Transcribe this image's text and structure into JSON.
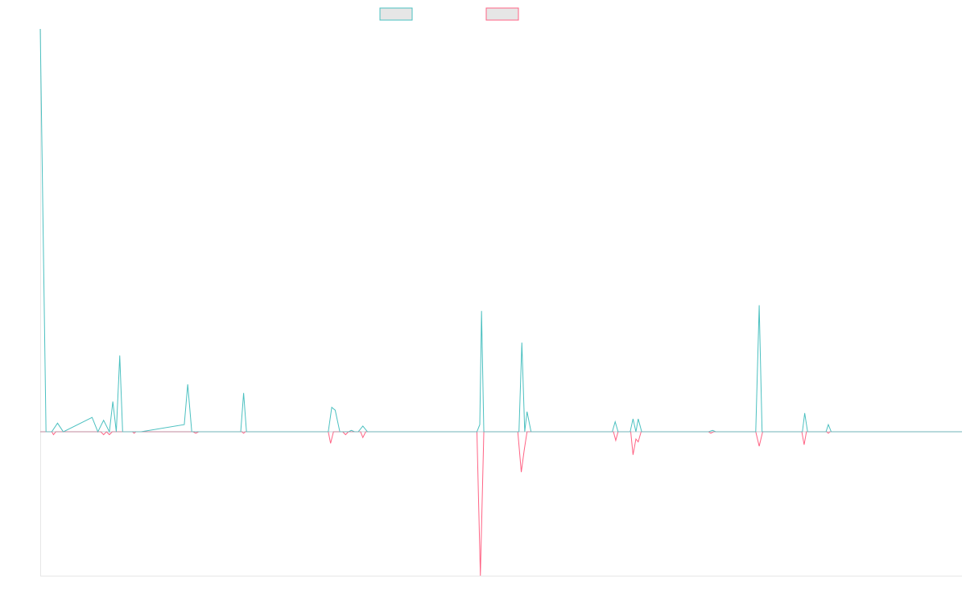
{
  "chart_data": {
    "type": "line",
    "title": "",
    "xlabel": "",
    "ylabel": "",
    "grid": false,
    "legend_position": "top-center",
    "colors": {
      "series_a": "#4bc0c0",
      "series_b": "#ff6384",
      "legend_fill": "#e6e6e6",
      "axis": "#e6e6e6"
    },
    "x_count": 160,
    "ylim": [
      -100,
      280
    ],
    "series": [
      {
        "color": "#4bc0c0",
        "points": [
          [
            0,
            280
          ],
          [
            1,
            0
          ],
          [
            2,
            0
          ],
          [
            3,
            6
          ],
          [
            4,
            0
          ],
          [
            9,
            10
          ],
          [
            10,
            0
          ],
          [
            11,
            8
          ],
          [
            12,
            0
          ],
          [
            12.6,
            21
          ],
          [
            13.2,
            0
          ],
          [
            13.8,
            53
          ],
          [
            14.3,
            0
          ],
          [
            16,
            0
          ],
          [
            17.5,
            0
          ],
          [
            25,
            5
          ],
          [
            25.6,
            33
          ],
          [
            26.3,
            0
          ],
          [
            34.8,
            0
          ],
          [
            35.3,
            27
          ],
          [
            35.8,
            0
          ],
          [
            50,
            0
          ],
          [
            50.6,
            17
          ],
          [
            51.2,
            15
          ],
          [
            52,
            0
          ],
          [
            53.5,
            0
          ],
          [
            54,
            1
          ],
          [
            54.6,
            0
          ],
          [
            55.2,
            0
          ],
          [
            56,
            4
          ],
          [
            56.8,
            0
          ],
          [
            75.8,
            0
          ],
          [
            76.3,
            5
          ],
          [
            76.6,
            84
          ],
          [
            77,
            0
          ],
          [
            83.1,
            0
          ],
          [
            83.6,
            62
          ],
          [
            84.1,
            0
          ],
          [
            84.5,
            14
          ],
          [
            85.2,
            0
          ],
          [
            99.3,
            0
          ],
          [
            99.8,
            7
          ],
          [
            100.3,
            0
          ],
          [
            102.4,
            0
          ],
          [
            102.9,
            9
          ],
          [
            103.4,
            0
          ],
          [
            103.8,
            9
          ],
          [
            104.4,
            0
          ],
          [
            116,
            0
          ],
          [
            116.7,
            1
          ],
          [
            117.3,
            0
          ],
          [
            124.2,
            0
          ],
          [
            124.8,
            88
          ],
          [
            125.3,
            0
          ],
          [
            132.3,
            0
          ],
          [
            132.7,
            13
          ],
          [
            133.2,
            0
          ],
          [
            136.4,
            0
          ],
          [
            136.8,
            5
          ],
          [
            137.3,
            0
          ],
          [
            160,
            0
          ]
        ]
      },
      {
        "color": "#ff6384",
        "points": [
          [
            0,
            0
          ],
          [
            2,
            0
          ],
          [
            2.3,
            -2
          ],
          [
            2.7,
            0
          ],
          [
            10.5,
            0
          ],
          [
            11,
            -2
          ],
          [
            11.5,
            0
          ],
          [
            12,
            -2
          ],
          [
            12.5,
            0
          ],
          [
            16,
            0
          ],
          [
            16.3,
            -1
          ],
          [
            16.6,
            0
          ],
          [
            26.5,
            0
          ],
          [
            27,
            -1
          ],
          [
            27.5,
            0
          ],
          [
            35,
            0
          ],
          [
            35.3,
            -1
          ],
          [
            35.6,
            0
          ],
          [
            50,
            0
          ],
          [
            50.4,
            -8
          ],
          [
            50.9,
            0
          ],
          [
            52.5,
            0
          ],
          [
            53,
            -2
          ],
          [
            53.5,
            0
          ],
          [
            55.6,
            0
          ],
          [
            56,
            -4
          ],
          [
            56.5,
            0
          ],
          [
            75.8,
            0
          ],
          [
            76.4,
            -100
          ],
          [
            77,
            0
          ],
          [
            82.9,
            0
          ],
          [
            83.5,
            -28
          ],
          [
            84,
            -13
          ],
          [
            84.5,
            0
          ],
          [
            99.5,
            0
          ],
          [
            99.9,
            -6
          ],
          [
            100.3,
            0
          ],
          [
            102.5,
            0
          ],
          [
            102.9,
            -16
          ],
          [
            103.4,
            -5
          ],
          [
            103.8,
            -7
          ],
          [
            104.3,
            0
          ],
          [
            116,
            0
          ],
          [
            116.4,
            -1
          ],
          [
            116.9,
            0
          ],
          [
            124.2,
            0
          ],
          [
            124.8,
            -10
          ],
          [
            125.4,
            0
          ],
          [
            132.2,
            0
          ],
          [
            132.6,
            -9
          ],
          [
            133,
            0
          ],
          [
            136.5,
            0
          ],
          [
            136.8,
            -1
          ],
          [
            137.1,
            0
          ],
          [
            160,
            0
          ]
        ]
      }
    ]
  }
}
